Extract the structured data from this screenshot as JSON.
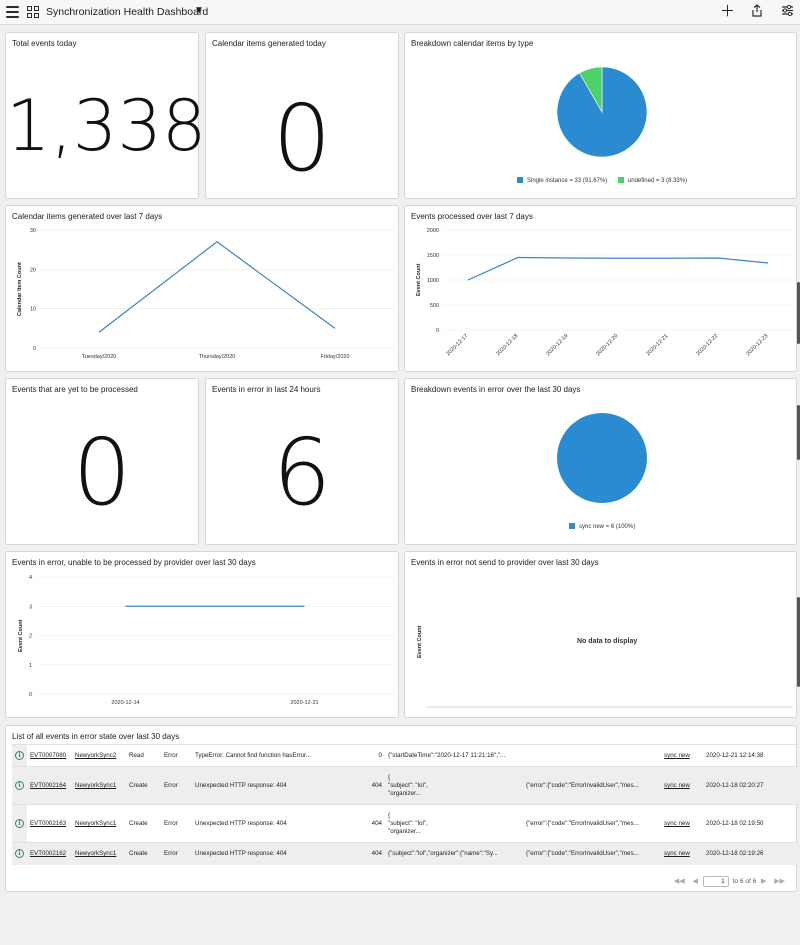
{
  "header": {
    "title": "Synchronization Health Dashboard",
    "icons": [
      "menu-icon",
      "grid-icon",
      "chevron-down-icon",
      "plus-icon",
      "share-icon",
      "settings-sliders-icon"
    ]
  },
  "cards": {
    "total_events": {
      "title": "Total events today",
      "value": "1,338"
    },
    "calendar_items_today": {
      "title": "Calendar items generated today",
      "value": "0"
    },
    "breakdown_type": {
      "title": "Breakdown calendar items by type",
      "legend": [
        "Single instance = 33 (91.67%)",
        "undefined = 3 (8.33%)"
      ]
    },
    "cal_7days": {
      "title": "Calendar items generated over last 7 days",
      "ylabel": "Calendar Item Count"
    },
    "events_7days": {
      "title": "Events processed over last 7 days",
      "ylabel": "Event Count"
    },
    "yet_to_process": {
      "title": "Events that are yet to be processed",
      "value": "0"
    },
    "errors_24h": {
      "title": "Events in error in last 24 hours",
      "value": "6"
    },
    "breakdown_errors": {
      "title": "Breakdown events in error over the last 30 days",
      "legend": [
        "sync new = 6 (100%)"
      ]
    },
    "errors_provider": {
      "title": "Events in error, unable to be processed by provider over last 30 days",
      "ylabel": "Event Count"
    },
    "errors_not_sent": {
      "title": "Events in error not send to provider over last 30 days",
      "ylabel": "Event Count",
      "nodata": "No data to display"
    }
  },
  "chart_data": [
    {
      "type": "pie",
      "title": "Breakdown calendar items by type",
      "categories": [
        "Single instance",
        "undefined"
      ],
      "values": [
        33,
        3
      ],
      "colors": [
        "#2a8bd0",
        "#4fd16a"
      ]
    },
    {
      "type": "line",
      "title": "Calendar items generated over last 7 days",
      "categories": [
        "Tuesday/2020",
        "Thursday/2020",
        "Friday/2020"
      ],
      "values": [
        4,
        27,
        5
      ],
      "ylim": [
        0,
        30
      ],
      "yticks": [
        0,
        10,
        20,
        30
      ],
      "ylabel": "Calendar Item Count",
      "color": "#3b82c8"
    },
    {
      "type": "line",
      "title": "Events processed over last 7 days",
      "categories": [
        "2020-12-17",
        "2020-12-18",
        "2020-12-19",
        "2020-12-20",
        "2020-12-21",
        "2020-12-22",
        "2020-12-23"
      ],
      "values": [
        1000,
        1450,
        1440,
        1435,
        1435,
        1440,
        1340
      ],
      "ylim": [
        0,
        2000
      ],
      "yticks": [
        0,
        500,
        1000,
        1500,
        2000
      ],
      "ylabel": "Event Count",
      "color": "#3b82c8"
    },
    {
      "type": "pie",
      "title": "Breakdown events in error over the last 30 days",
      "categories": [
        "sync new"
      ],
      "values": [
        6
      ],
      "colors": [
        "#2a8bd0"
      ]
    },
    {
      "type": "line",
      "title": "Events in error, unable to be processed by provider over last 30 days",
      "categories": [
        "2020-12-14",
        "2020-12-21"
      ],
      "values": [
        3,
        3
      ],
      "ylim": [
        0,
        4
      ],
      "yticks": [
        0,
        1,
        2,
        3,
        4
      ],
      "ylabel": "Event Count",
      "color": "#3b82c8"
    }
  ],
  "list": {
    "title": "List of all events in error state over last 30 days",
    "rows": [
      {
        "id": "EVT0007080",
        "target": "NewyorkSync2",
        "action": "Read",
        "state": "Error",
        "message": "TypeError: Cannot find function hasError...",
        "code": "0",
        "request": "{\"startDateTime\":\"2020-12-17 11:21:16\",\"...",
        "response": "",
        "cls": "sync new",
        "updated": "2020-12-21 12:14:38"
      },
      {
        "id": "EVT0002164",
        "target": "NewyorkSync1",
        "action": "Create",
        "state": "Error",
        "message": "Unexpected HTTP response: 404",
        "code": "404",
        "request": "{\n\"subject\": \"lol\",\n\"organizer...",
        "response": "{\"error\":{\"code\":\"ErrorInvalidUser\",\"mes...",
        "cls": "sync new",
        "updated": "2020-12-18 02:20:27"
      },
      {
        "id": "EVT0002163",
        "target": "NewyorkSync1",
        "action": "Create",
        "state": "Error",
        "message": "Unexpected HTTP response: 404",
        "code": "404",
        "request": "{\n\"subject\": \"lol\",\n\"organizer...",
        "response": "{\"error\":{\"code\":\"ErrorInvalidUser\",\"mes...",
        "cls": "sync new",
        "updated": "2020-12-18 02:19:50"
      },
      {
        "id": "EVT0002162",
        "target": "NewyorkSync1",
        "action": "Create",
        "state": "Error",
        "message": "Unexpected HTTP response: 404",
        "code": "404",
        "request": "{\"subject\":\"lol\",\"organizer\":{\"name\":\"Sy...",
        "response": "{\"error\":{\"code\":\"ErrorInvalidUser\",\"mes...",
        "cls": "sync new",
        "updated": "2020-12-18 02:19:26"
      }
    ],
    "pager": {
      "current": "1",
      "label": "to 6 of 6"
    }
  }
}
